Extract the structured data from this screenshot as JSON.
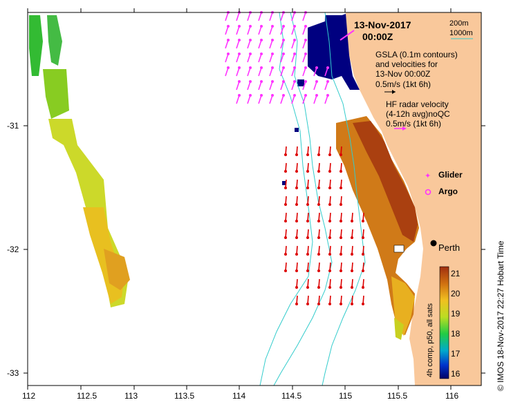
{
  "map": {
    "date_title": "13-Nov-2017",
    "time_title": "00:00Z",
    "depth_legend": [
      "200m",
      "1000m"
    ],
    "gsla_legend": [
      "GSLA (0.1m contours)",
      "and velocities for",
      "13-Nov 00:00Z",
      "0.5m/s (1kt 6h)"
    ],
    "hf_legend": [
      "HF radar velocity",
      "(4-12h avg)noQC",
      "0.5m/s (1kt 6h)"
    ],
    "glider_label": "Glider",
    "argo_label": "Argo",
    "city_label": "Perth",
    "x_ticks": [
      "112",
      "112.5",
      "113",
      "113.5",
      "114",
      "114.5",
      "115",
      "115.5",
      "116"
    ],
    "y_ticks": [
      "-31",
      "-32",
      "-33"
    ],
    "colorbar_ticks": [
      "21",
      "20",
      "19",
      "18",
      "17",
      "16"
    ],
    "colorbar_label": "4h comp, p50, all sats",
    "credit": "© IMOS 18-Nov-2017 22:27 Hobart Time",
    "colors": {
      "land": "#f9c89b",
      "hf_vector": "#ff33ff",
      "gsla_vector": "#dd0000",
      "bathymetry": "#33cccc",
      "no_data": "#000080"
    }
  }
}
